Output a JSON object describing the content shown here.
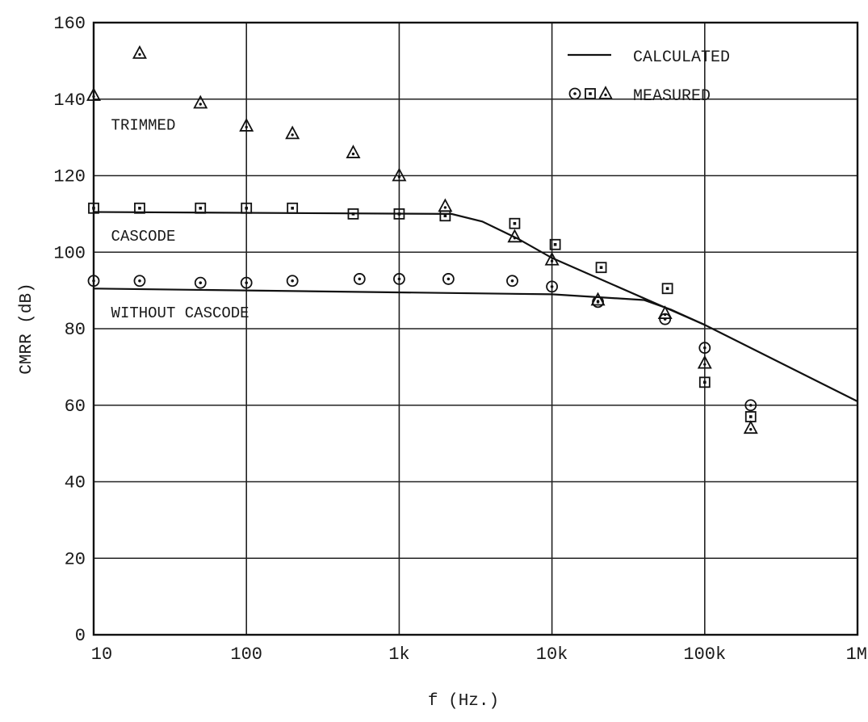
{
  "chart_data": {
    "type": "line",
    "xlabel": "f (Hz.)",
    "ylabel": "CMRR (dB)",
    "xscale": "log",
    "xlim": [
      10,
      1000000
    ],
    "ylim": [
      0,
      160
    ],
    "grid": true,
    "x_ticks": [
      {
        "value": 10,
        "label": "10"
      },
      {
        "value": 100,
        "label": "100"
      },
      {
        "value": 1000,
        "label": "1k"
      },
      {
        "value": 10000,
        "label": "10k"
      },
      {
        "value": 100000,
        "label": "100k"
      },
      {
        "value": 1000000,
        "label": "1M"
      }
    ],
    "y_ticks": [
      0,
      20,
      40,
      60,
      80,
      100,
      120,
      140,
      160
    ],
    "legend": {
      "placement": "top-right",
      "calculated_label": "CALCULATED",
      "measured_label": "MEASURED",
      "calculated_symbol": "line",
      "measured_symbols": [
        "circle",
        "square",
        "triangle"
      ]
    },
    "annotations": [
      {
        "text": "TRIMMED",
        "x": 13,
        "y": 132
      },
      {
        "text": "CASCODE",
        "x": 13,
        "y": 103
      },
      {
        "text": "WITHOUT CASCODE",
        "x": 13,
        "y": 83
      }
    ],
    "calculated_lines": [
      {
        "name": "CASCODE",
        "points": [
          [
            10,
            110.5
          ],
          [
            2200,
            110
          ],
          [
            3500,
            108
          ],
          [
            6000,
            103.5
          ],
          [
            10000,
            98.5
          ],
          [
            100000,
            81
          ],
          [
            1000000,
            61
          ]
        ]
      },
      {
        "name": "WITHOUT CASCODE",
        "points": [
          [
            10,
            90.5
          ],
          [
            10000,
            89
          ],
          [
            40000,
            87.5
          ],
          [
            60000,
            85
          ],
          [
            100000,
            81
          ]
        ]
      }
    ],
    "series": [
      {
        "name": "TRIMMED",
        "marker": "triangle",
        "points": [
          [
            10,
            141
          ],
          [
            20,
            152
          ],
          [
            50,
            139
          ],
          [
            100,
            133
          ],
          [
            200,
            131
          ],
          [
            500,
            126
          ],
          [
            1000,
            120
          ],
          [
            2000,
            112
          ],
          [
            5700,
            104
          ],
          [
            10000,
            98
          ],
          [
            20000,
            87.5
          ],
          [
            55000,
            84
          ],
          [
            100000,
            71
          ],
          [
            200000,
            54
          ]
        ]
      },
      {
        "name": "CASCODE",
        "marker": "square",
        "points": [
          [
            10,
            111.5
          ],
          [
            20,
            111.5
          ],
          [
            50,
            111.5
          ],
          [
            100,
            111.5
          ],
          [
            200,
            111.5
          ],
          [
            500,
            110
          ],
          [
            1000,
            110
          ],
          [
            2000,
            109.5
          ],
          [
            5700,
            107.5
          ],
          [
            10500,
            102
          ],
          [
            21000,
            96
          ],
          [
            57000,
            90.5
          ],
          [
            100000,
            66
          ],
          [
            200000,
            57
          ]
        ]
      },
      {
        "name": "WITHOUT CASCODE",
        "marker": "circle",
        "points": [
          [
            10,
            92.5
          ],
          [
            20,
            92.5
          ],
          [
            50,
            92
          ],
          [
            100,
            92
          ],
          [
            200,
            92.5
          ],
          [
            550,
            93
          ],
          [
            1000,
            93
          ],
          [
            2100,
            93
          ],
          [
            5500,
            92.5
          ],
          [
            10000,
            91
          ],
          [
            20000,
            87
          ],
          [
            55000,
            82.5
          ],
          [
            100000,
            75
          ],
          [
            200000,
            60
          ]
        ]
      }
    ]
  }
}
